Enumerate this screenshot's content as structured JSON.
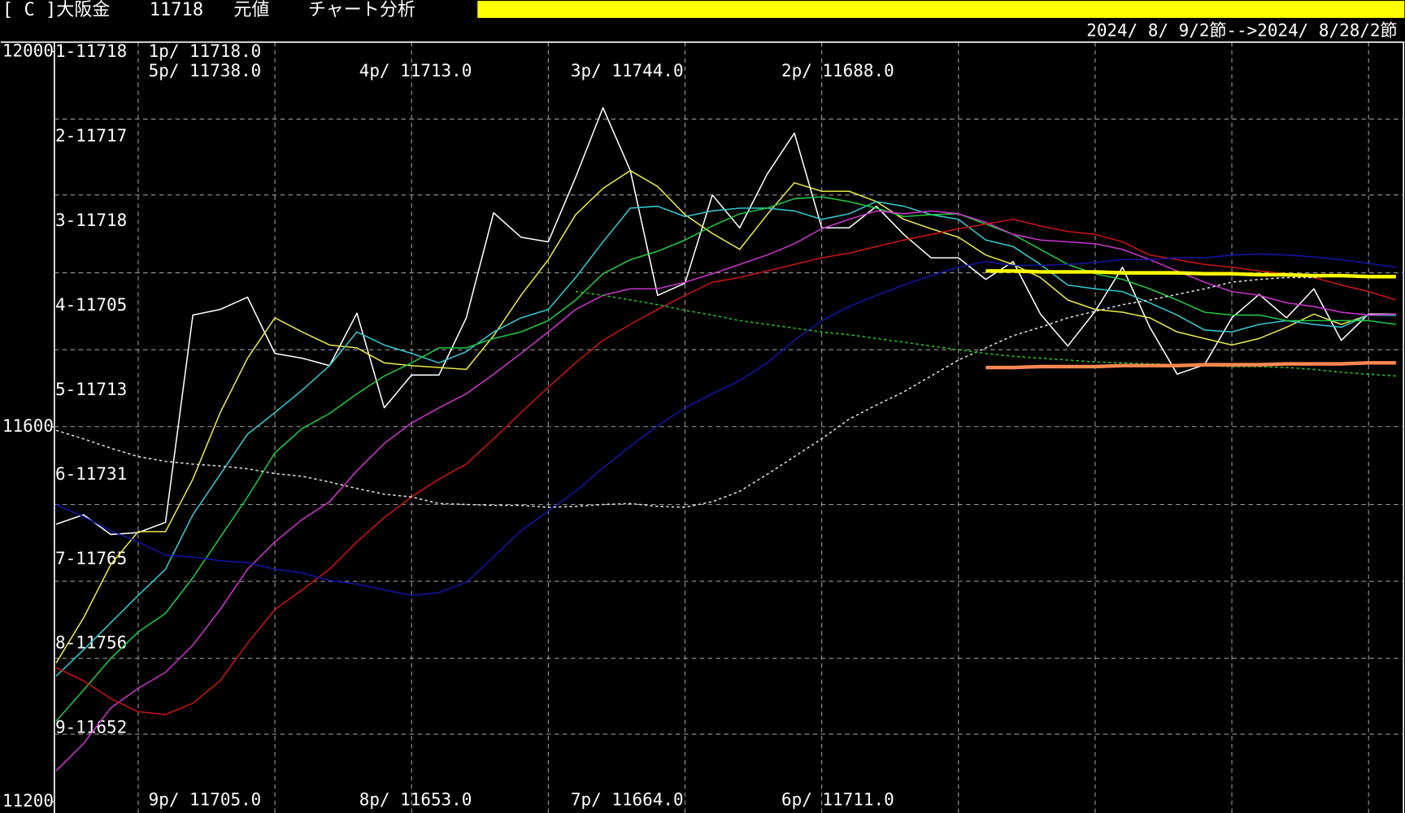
{
  "header": {
    "symbol": "[ C ]大阪金",
    "price": "11718",
    "mode": "元値",
    "menu": "チャート分析",
    "date_range": "2024/ 8/ 9/2節-->2024/ 8/28/2節"
  },
  "chart_data": {
    "type": "line",
    "ylim": [
      11188,
      12010
    ],
    "yticks": [
      12000,
      11600,
      11200
    ],
    "ygrid": [
      11928,
      11847,
      11764,
      11682,
      11600,
      11517,
      11435,
      11353,
      11272
    ],
    "side_labels": [
      "1-11718",
      "2-11717",
      "3-11718",
      "4-11705",
      "5-11713",
      "6-11731",
      "7-11765",
      "8-11756",
      "9-11652"
    ],
    "price_labels_top": [
      "1p/ 11718.0",
      "5p/ 11738.0",
      "4p/ 11713.0",
      "3p/ 11744.0",
      "2p/ 11688.0"
    ],
    "price_labels_bottom": [
      "9p/ 11705.0",
      "8p/ 11653.0",
      "7p/ 11664.0",
      "6p/ 11711.0"
    ],
    "series": [
      {
        "color": "#ffffff",
        "values": [
          11496,
          11506,
          11485,
          11487,
          11498,
          11719,
          11725,
          11738,
          11678,
          11673,
          11665,
          11721,
          11620,
          11655,
          11655,
          11716,
          11828,
          11802,
          11797,
          11866,
          11940,
          11873,
          11740,
          11753,
          11847,
          11812,
          11869,
          11913,
          11812,
          11812,
          11835,
          11805,
          11780,
          11780,
          11757,
          11776,
          11720,
          11686,
          11723,
          11770,
          11706,
          11656,
          11666,
          11716,
          11741,
          11716,
          11747,
          11692,
          11720,
          11720
        ]
      },
      {
        "color": "#e8e84a",
        "values": [
          11348,
          11396,
          11453,
          11488,
          11488,
          11544,
          11615,
          11673,
          11716,
          11701,
          11687,
          11684,
          11668,
          11665,
          11663,
          11661,
          11697,
          11740,
          11778,
          11826,
          11854,
          11873,
          11856,
          11826,
          11806,
          11789,
          11826,
          11860,
          11851,
          11851,
          11840,
          11821,
          11811,
          11802,
          11783,
          11773,
          11759,
          11735,
          11725,
          11722,
          11716,
          11701,
          11694,
          11687,
          11694,
          11706,
          11720,
          11709,
          11719,
          11719
        ]
      },
      {
        "color": "#33c8d0",
        "values": [
          11334,
          11362,
          11391,
          11420,
          11448,
          11506,
          11549,
          11592,
          11615,
          11639,
          11665,
          11701,
          11687,
          11678,
          11668,
          11680,
          11701,
          11716,
          11725,
          11759,
          11797,
          11833,
          11835,
          11824,
          11830,
          11833,
          11833,
          11830,
          11821,
          11827,
          11840,
          11835,
          11826,
          11821,
          11799,
          11792,
          11773,
          11751,
          11747,
          11744,
          11732,
          11719,
          11703,
          11701,
          11709,
          11713,
          11709,
          11706,
          11719,
          11719
        ]
      },
      {
        "color": "#22c844",
        "values": [
          11286,
          11319,
          11353,
          11381,
          11401,
          11439,
          11482,
          11525,
          11572,
          11598,
          11614,
          11635,
          11654,
          11668,
          11684,
          11684,
          11694,
          11701,
          11713,
          11735,
          11763,
          11778,
          11787,
          11799,
          11814,
          11827,
          11833,
          11843,
          11845,
          11840,
          11833,
          11824,
          11826,
          11827,
          11816,
          11805,
          11789,
          11773,
          11763,
          11757,
          11747,
          11735,
          11722,
          11719,
          11719,
          11713,
          11713,
          11713,
          11713,
          11709
        ]
      },
      {
        "color": "#cc33cc",
        "values": [
          11233,
          11262,
          11300,
          11321,
          11338,
          11367,
          11405,
          11448,
          11477,
          11501,
          11520,
          11553,
          11582,
          11604,
          11620,
          11635,
          11656,
          11678,
          11701,
          11725,
          11740,
          11747,
          11747,
          11754,
          11763,
          11773,
          11783,
          11795,
          11811,
          11821,
          11830,
          11827,
          11830,
          11827,
          11818,
          11805,
          11799,
          11797,
          11795,
          11789,
          11778,
          11766,
          11754,
          11744,
          11740,
          11732,
          11728,
          11722,
          11719,
          11720
        ]
      },
      {
        "color": "#cc1414",
        "values": [
          11343,
          11329,
          11310,
          11296,
          11293,
          11305,
          11329,
          11369,
          11405,
          11426,
          11448,
          11477,
          11503,
          11525,
          11544,
          11560,
          11587,
          11615,
          11642,
          11668,
          11692,
          11709,
          11725,
          11740,
          11754,
          11759,
          11766,
          11773,
          11780,
          11785,
          11792,
          11799,
          11805,
          11811,
          11816,
          11821,
          11814,
          11808,
          11805,
          11797,
          11783,
          11778,
          11773,
          11770,
          11766,
          11763,
          11759,
          11751,
          11744,
          11735
        ]
      },
      {
        "color": "#1414a8",
        "values": [
          11517,
          11504,
          11489,
          11477,
          11463,
          11461,
          11457,
          11455,
          11448,
          11444,
          11436,
          11432,
          11426,
          11420,
          11423,
          11434,
          11461,
          11489,
          11510,
          11531,
          11556,
          11579,
          11601,
          11620,
          11635,
          11649,
          11668,
          11692,
          11713,
          11728,
          11740,
          11751,
          11761,
          11770,
          11776,
          11772,
          11772,
          11773,
          11775,
          11778,
          11778,
          11780,
          11780,
          11783,
          11784,
          11783,
          11781,
          11778,
          11774,
          11770
        ]
      },
      {
        "color": "#e0e0e0",
        "dash": true,
        "values": [
          11596,
          11587,
          11577,
          11568,
          11563,
          11560,
          11558,
          11555,
          11550,
          11547,
          11541,
          11534,
          11528,
          11525,
          11518,
          11517,
          11516,
          11516,
          11514,
          11515,
          11517,
          11518,
          11515,
          11514,
          11520,
          11531,
          11549,
          11568,
          11587,
          11608,
          11623,
          11637,
          11654,
          11671,
          11684,
          11697,
          11706,
          11716,
          11723,
          11730,
          11735,
          11741,
          11747,
          11754,
          11757,
          11759,
          11759,
          11761,
          11761,
          11761
        ]
      },
      {
        "color": "#22c822",
        "dash": true,
        "values": [
          null,
          null,
          null,
          null,
          null,
          null,
          null,
          null,
          null,
          null,
          null,
          null,
          null,
          null,
          null,
          null,
          null,
          null,
          null,
          11744,
          11740,
          11735,
          11730,
          11724,
          11719,
          11713,
          11709,
          11705,
          11701,
          11698,
          11694,
          11690,
          11686,
          11682,
          11678,
          11675,
          11673,
          11671,
          11669,
          11668,
          11667,
          11666,
          11665,
          11664,
          11664,
          11663,
          11661,
          11658,
          11656,
          11654
        ]
      },
      {
        "color": "#ffff00",
        "style": "bold",
        "values": [
          null,
          null,
          null,
          null,
          null,
          null,
          null,
          null,
          null,
          null,
          null,
          null,
          null,
          null,
          null,
          null,
          null,
          null,
          null,
          null,
          null,
          null,
          null,
          null,
          null,
          null,
          null,
          null,
          null,
          null,
          null,
          null,
          null,
          null,
          11766,
          11766,
          11765,
          11765,
          11765,
          11764,
          11764,
          11764,
          11763,
          11763,
          11762,
          11762,
          11761,
          11761,
          11760,
          11760
        ]
      },
      {
        "color": "#ff8850",
        "style": "bold",
        "values": [
          null,
          null,
          null,
          null,
          null,
          null,
          null,
          null,
          null,
          null,
          null,
          null,
          null,
          null,
          null,
          null,
          null,
          null,
          null,
          null,
          null,
          null,
          null,
          null,
          null,
          null,
          null,
          null,
          null,
          null,
          null,
          null,
          null,
          null,
          11663,
          11663,
          11664,
          11664,
          11664,
          11665,
          11665,
          11665,
          11666,
          11666,
          11666,
          11667,
          11667,
          11667,
          11668,
          11668
        ]
      }
    ]
  }
}
